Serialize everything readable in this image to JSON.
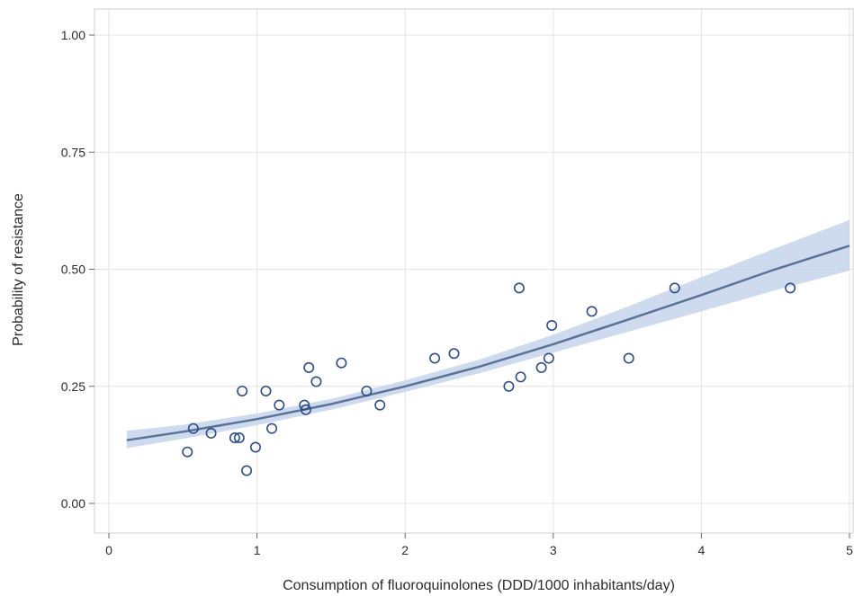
{
  "chart_data": {
    "type": "scatter",
    "title": "",
    "xlabel": "Consumption of fluoroquinolones (DDD/1000 inhabitants/day)",
    "ylabel": "Probability of resistance",
    "xlim": [
      0,
      5
    ],
    "ylim": [
      0,
      1
    ],
    "x_ticks": [
      "0",
      "1",
      "2",
      "3",
      "4",
      "5"
    ],
    "y_ticks": [
      "0.00",
      "0.25",
      "0.50",
      "0.75",
      "1.00"
    ],
    "grid": true,
    "colors": {
      "points": "#2e4d8a",
      "fit_line": "#5a7396",
      "ci_band": "#c6d5ec"
    },
    "series": [
      {
        "type": "scatter",
        "points": [
          [
            0.53,
            0.11
          ],
          [
            0.57,
            0.16
          ],
          [
            0.69,
            0.15
          ],
          [
            0.85,
            0.14
          ],
          [
            0.88,
            0.14
          ],
          [
            0.9,
            0.24
          ],
          [
            0.93,
            0.07
          ],
          [
            0.99,
            0.12
          ],
          [
            1.06,
            0.24
          ],
          [
            1.1,
            0.16
          ],
          [
            1.15,
            0.21
          ],
          [
            1.32,
            0.21
          ],
          [
            1.33,
            0.2
          ],
          [
            1.35,
            0.29
          ],
          [
            1.4,
            0.26
          ],
          [
            1.57,
            0.3
          ],
          [
            1.74,
            0.24
          ],
          [
            1.83,
            0.21
          ],
          [
            2.2,
            0.31
          ],
          [
            2.33,
            0.32
          ],
          [
            2.7,
            0.25
          ],
          [
            2.77,
            0.46
          ],
          [
            2.78,
            0.27
          ],
          [
            2.92,
            0.29
          ],
          [
            2.97,
            0.31
          ],
          [
            2.99,
            0.38
          ],
          [
            3.26,
            0.41
          ],
          [
            3.51,
            0.31
          ],
          [
            3.82,
            0.46
          ],
          [
            4.6,
            0.46
          ]
        ]
      },
      {
        "type": "line",
        "x": [
          0.12,
          0.5,
          1.0,
          1.5,
          2.0,
          2.5,
          3.0,
          3.5,
          4.0,
          4.5,
          5.0
        ],
        "y": [
          0.135,
          0.153,
          0.18,
          0.212,
          0.25,
          0.292,
          0.34,
          0.392,
          0.445,
          0.5,
          0.55
        ],
        "ci_upper": [
          0.155,
          0.168,
          0.192,
          0.223,
          0.263,
          0.307,
          0.36,
          0.42,
          0.483,
          0.545,
          0.605
        ],
        "ci_lower": [
          0.118,
          0.138,
          0.167,
          0.2,
          0.238,
          0.278,
          0.322,
          0.366,
          0.41,
          0.455,
          0.497
        ]
      }
    ]
  }
}
